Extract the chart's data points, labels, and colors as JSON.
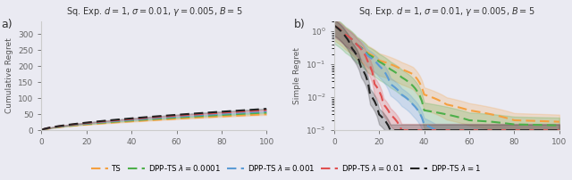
{
  "title": "Sq. Exp. $d=1$, $\\sigma=0.01$, $\\gamma=0.005$, $B=5$",
  "col_ts": "#f5a040",
  "col_g": "#4daf4a",
  "col_b": "#5b9bd5",
  "col_r": "#e05050",
  "col_k": "#222222",
  "alpha_fill": 0.22,
  "lw": 1.5,
  "bg": "#eaeaf2",
  "legend_labels": [
    "TS",
    "DPP-TS $\\lambda=0.0001$",
    "DPP-TS $\\lambda=0.001$",
    "DPP-TS $\\lambda=0.01$",
    "DPP-TS $\\lambda=1$"
  ],
  "cum_ylim": [
    0,
    340
  ],
  "sr_ylim": [
    0.001,
    2.0
  ],
  "xlim": [
    0,
    100
  ]
}
